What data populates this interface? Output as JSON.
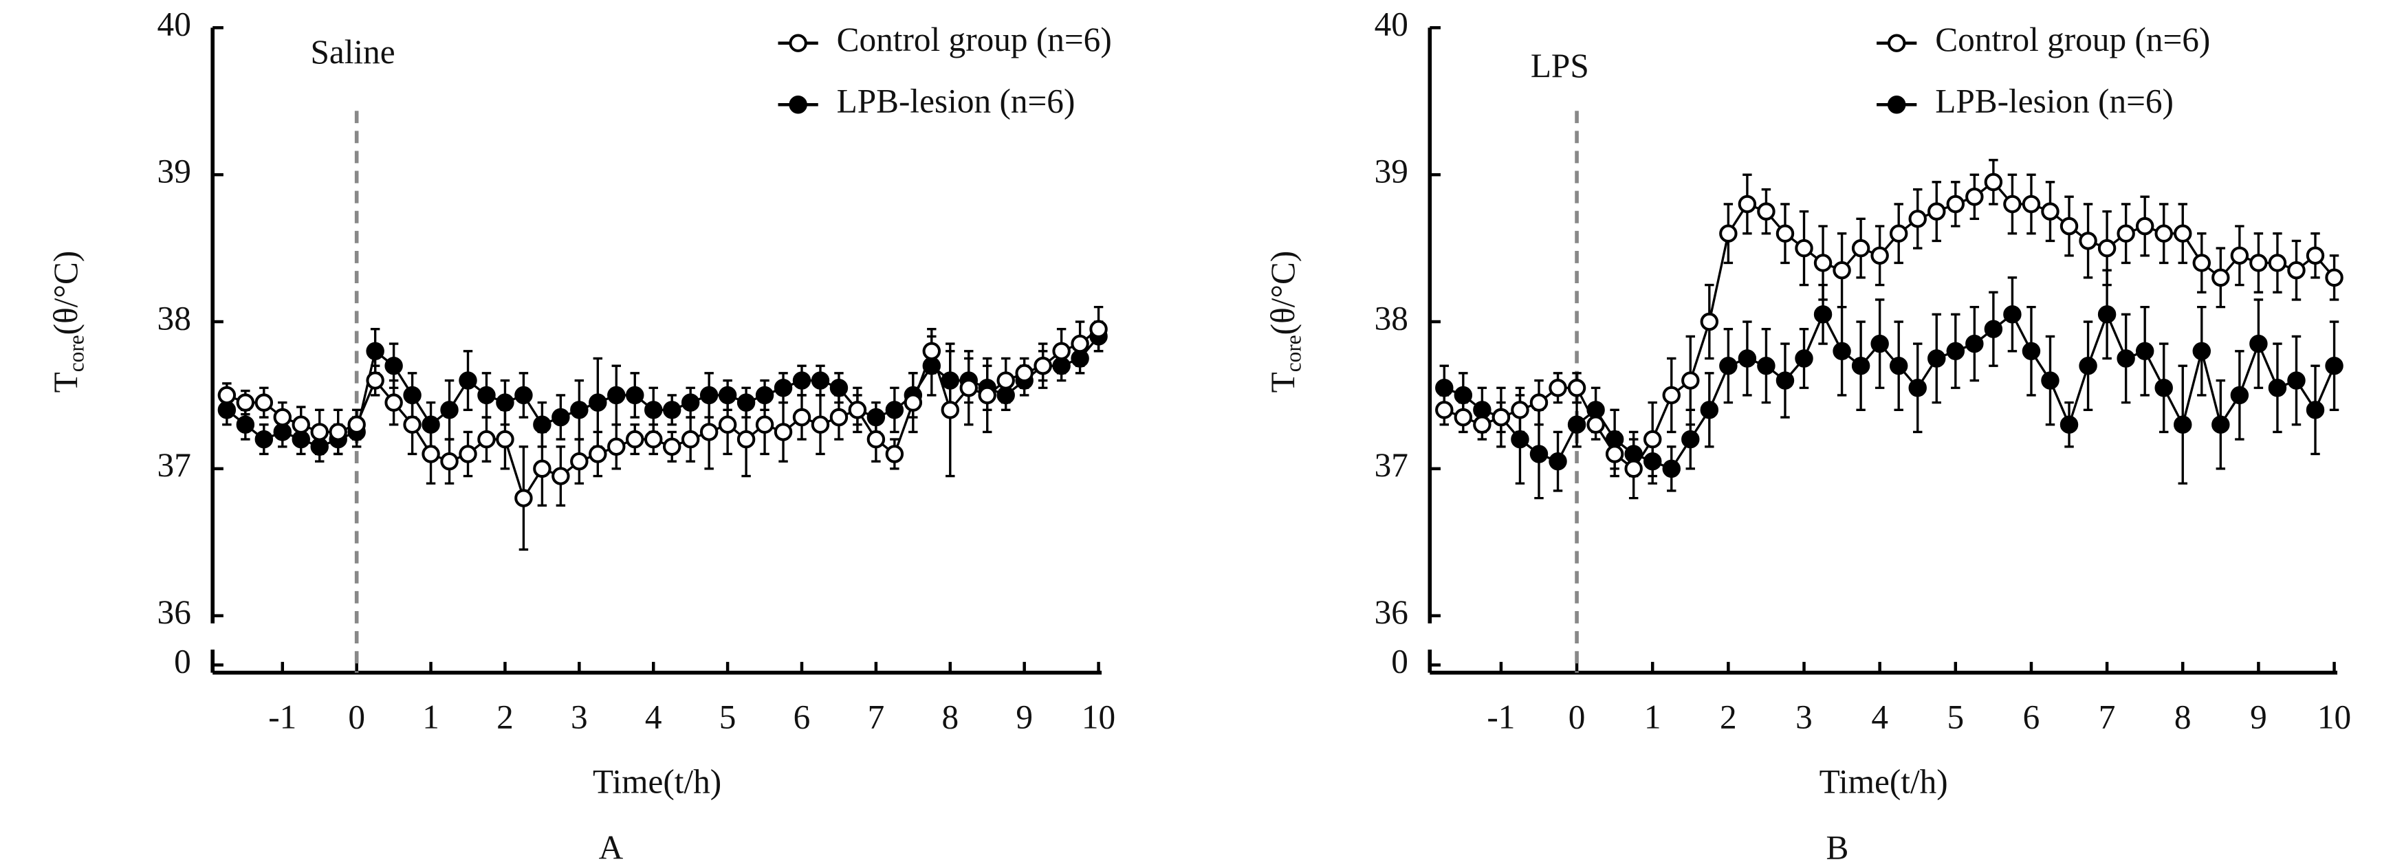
{
  "chart_data": [
    {
      "type": "line",
      "panel_label": "A",
      "annotation": "Saline",
      "vline": 0,
      "xlabel": "Time(t/h)",
      "ylabel_parts": [
        "T",
        "core",
        "(θ/°C)"
      ],
      "xlim": [
        -1.9,
        10
      ],
      "xticks": [
        -1,
        0,
        1,
        2,
        3,
        4,
        5,
        6,
        7,
        8,
        9,
        10
      ],
      "ylim": [
        36,
        40
      ],
      "yticks": [
        0,
        36,
        37,
        38,
        39,
        40
      ],
      "axis_break": true,
      "legend": "top-right",
      "x": [
        -1.75,
        -1.5,
        -1.25,
        -1,
        -0.75,
        -0.5,
        -0.25,
        0,
        0.25,
        0.5,
        0.75,
        1,
        1.25,
        1.5,
        1.75,
        2,
        2.25,
        2.5,
        2.75,
        3,
        3.25,
        3.5,
        3.75,
        4,
        4.25,
        4.5,
        4.75,
        5,
        5.25,
        5.5,
        5.75,
        6,
        6.25,
        6.5,
        6.75,
        7,
        7.25,
        7.5,
        7.75,
        8,
        8.25,
        8.5,
        8.75,
        9,
        9.25,
        9.5,
        9.75,
        10
      ],
      "series": [
        {
          "name": "LPB-lesion (n=6)",
          "color": "#000000",
          "marker": "filled",
          "values": [
            37.4,
            37.3,
            37.2,
            37.25,
            37.2,
            37.15,
            37.2,
            37.25,
            37.8,
            37.7,
            37.5,
            37.3,
            37.4,
            37.6,
            37.5,
            37.45,
            37.5,
            37.3,
            37.35,
            37.4,
            37.45,
            37.5,
            37.5,
            37.4,
            37.4,
            37.45,
            37.5,
            37.5,
            37.45,
            37.5,
            37.55,
            37.6,
            37.6,
            37.55,
            37.4,
            37.35,
            37.4,
            37.5,
            37.7,
            37.6,
            37.6,
            37.55,
            37.5,
            37.6,
            37.7,
            37.7,
            37.75,
            37.9
          ],
          "errors": [
            0.1,
            0.1,
            0.1,
            0.1,
            0.1,
            0.1,
            0.1,
            0.1,
            0.15,
            0.15,
            0.15,
            0.15,
            0.2,
            0.2,
            0.15,
            0.15,
            0.15,
            0.15,
            0.15,
            0.2,
            0.3,
            0.2,
            0.15,
            0.15,
            0.1,
            0.1,
            0.15,
            0.1,
            0.1,
            0.1,
            0.1,
            0.1,
            0.1,
            0.1,
            0.1,
            0.1,
            0.15,
            0.15,
            0.2,
            0.2,
            0.15,
            0.15,
            0.1,
            0.1,
            0.1,
            0.1,
            0.1,
            0.1
          ]
        },
        {
          "name": "Control group (n=6)",
          "color": "#000000",
          "marker": "open",
          "values": [
            37.5,
            37.45,
            37.45,
            37.35,
            37.3,
            37.25,
            37.25,
            37.3,
            37.6,
            37.45,
            37.3,
            37.1,
            37.05,
            37.1,
            37.2,
            37.2,
            36.8,
            37.0,
            36.95,
            37.05,
            37.1,
            37.15,
            37.2,
            37.2,
            37.15,
            37.2,
            37.25,
            37.3,
            37.2,
            37.3,
            37.25,
            37.35,
            37.3,
            37.35,
            37.4,
            37.2,
            37.1,
            37.45,
            37.8,
            37.4,
            37.55,
            37.5,
            37.6,
            37.65,
            37.7,
            37.8,
            37.85,
            37.95
          ],
          "errors": [
            0.08,
            0.08,
            0.1,
            0.1,
            0.12,
            0.15,
            0.15,
            0.1,
            0.1,
            0.15,
            0.2,
            0.2,
            0.15,
            0.15,
            0.15,
            0.2,
            0.35,
            0.25,
            0.2,
            0.15,
            0.15,
            0.15,
            0.1,
            0.1,
            0.1,
            0.15,
            0.25,
            0.2,
            0.25,
            0.2,
            0.2,
            0.15,
            0.2,
            0.15,
            0.15,
            0.15,
            0.1,
            0.2,
            0.15,
            0.45,
            0.25,
            0.25,
            0.15,
            0.1,
            0.15,
            0.15,
            0.15,
            0.15
          ]
        }
      ]
    },
    {
      "type": "line",
      "panel_label": "B",
      "annotation": "LPS",
      "vline": 0,
      "xlabel": "Time(t/h)",
      "ylabel_parts": [
        "T",
        "core",
        "(θ/°C)"
      ],
      "xlim": [
        -1.9,
        10
      ],
      "xticks": [
        -1,
        0,
        1,
        2,
        3,
        4,
        5,
        6,
        7,
        8,
        9,
        10
      ],
      "ylim": [
        36,
        40
      ],
      "yticks": [
        0,
        36,
        37,
        38,
        39,
        40
      ],
      "axis_break": true,
      "legend": "top-right",
      "x": [
        -1.75,
        -1.5,
        -1.25,
        -1,
        -0.75,
        -0.5,
        -0.25,
        0,
        0.25,
        0.5,
        0.75,
        1,
        1.25,
        1.5,
        1.75,
        2,
        2.25,
        2.5,
        2.75,
        3,
        3.25,
        3.5,
        3.75,
        4,
        4.25,
        4.5,
        4.75,
        5,
        5.25,
        5.5,
        5.75,
        6,
        6.25,
        6.5,
        6.75,
        7,
        7.25,
        7.5,
        7.75,
        8,
        8.25,
        8.5,
        8.75,
        9,
        9.25,
        9.5,
        9.75,
        10
      ],
      "series": [
        {
          "name": "LPB-lesion (n=6)",
          "color": "#000000",
          "marker": "filled",
          "values": [
            37.55,
            37.5,
            37.4,
            37.35,
            37.2,
            37.1,
            37.05,
            37.3,
            37.4,
            37.2,
            37.1,
            37.05,
            37.0,
            37.2,
            37.4,
            37.7,
            37.75,
            37.7,
            37.6,
            37.75,
            38.05,
            37.8,
            37.7,
            37.85,
            37.7,
            37.55,
            37.75,
            37.8,
            37.85,
            37.95,
            38.05,
            37.8,
            37.6,
            37.3,
            37.7,
            38.05,
            37.75,
            37.8,
            37.55,
            37.3,
            37.8,
            37.3,
            37.5,
            37.85,
            37.55,
            37.6,
            37.4,
            37.7
          ],
          "errors": [
            0.15,
            0.15,
            0.15,
            0.2,
            0.3,
            0.3,
            0.2,
            0.15,
            0.15,
            0.2,
            0.15,
            0.15,
            0.15,
            0.2,
            0.25,
            0.25,
            0.25,
            0.25,
            0.25,
            0.2,
            0.2,
            0.3,
            0.3,
            0.3,
            0.3,
            0.3,
            0.3,
            0.25,
            0.25,
            0.25,
            0.25,
            0.3,
            0.3,
            0.15,
            0.3,
            0.3,
            0.3,
            0.3,
            0.3,
            0.4,
            0.3,
            0.3,
            0.3,
            0.3,
            0.3,
            0.3,
            0.3,
            0.3
          ]
        },
        {
          "name": "Control group (n=6)",
          "color": "#000000",
          "marker": "open",
          "values": [
            37.4,
            37.35,
            37.3,
            37.35,
            37.4,
            37.45,
            37.55,
            37.55,
            37.3,
            37.1,
            37.0,
            37.2,
            37.5,
            37.6,
            38.0,
            38.6,
            38.8,
            38.75,
            38.6,
            38.5,
            38.4,
            38.35,
            38.5,
            38.45,
            38.6,
            38.7,
            38.75,
            38.8,
            38.85,
            38.95,
            38.8,
            38.8,
            38.75,
            38.65,
            38.55,
            38.5,
            38.6,
            38.65,
            38.6,
            38.6,
            38.4,
            38.3,
            38.45,
            38.4,
            38.4,
            38.35,
            38.45,
            38.3
          ],
          "errors": [
            0.1,
            0.1,
            0.1,
            0.1,
            0.15,
            0.15,
            0.1,
            0.1,
            0.1,
            0.15,
            0.2,
            0.25,
            0.25,
            0.3,
            0.25,
            0.2,
            0.2,
            0.15,
            0.2,
            0.25,
            0.25,
            0.25,
            0.2,
            0.2,
            0.2,
            0.2,
            0.2,
            0.15,
            0.15,
            0.15,
            0.2,
            0.2,
            0.2,
            0.2,
            0.25,
            0.25,
            0.2,
            0.2,
            0.2,
            0.2,
            0.2,
            0.2,
            0.2,
            0.2,
            0.2,
            0.2,
            0.15,
            0.15
          ]
        }
      ]
    }
  ]
}
